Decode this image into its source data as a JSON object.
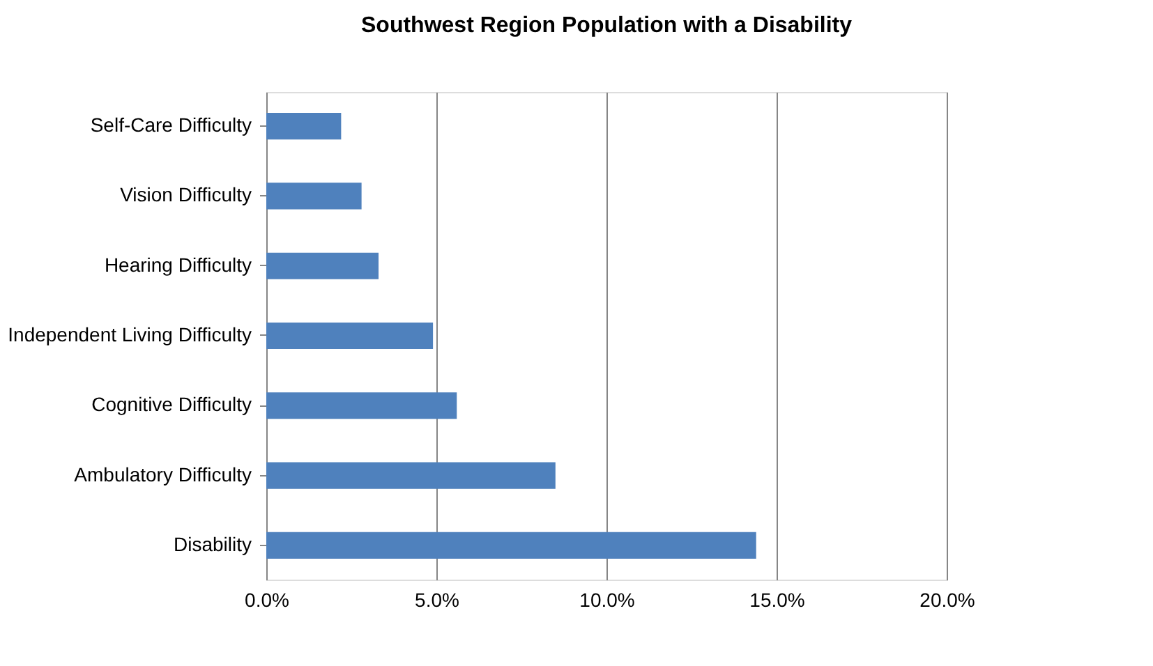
{
  "chart_data": {
    "type": "bar",
    "orientation": "horizontal",
    "title": "Southwest Region Population with a Disability",
    "categories": [
      "Self-Care Difficulty",
      "Vision Difficulty",
      "Hearing Difficulty",
      "Independent Living Difficulty",
      "Cognitive Difficulty",
      "Ambulatory Difficulty",
      "Disability"
    ],
    "values": [
      2.2,
      2.8,
      3.3,
      4.9,
      5.6,
      8.5,
      14.4
    ],
    "color": "#4f81bd",
    "xlim": [
      0,
      20
    ],
    "xticks": [
      {
        "value": 0,
        "label": "0.0%"
      },
      {
        "value": 5,
        "label": "5.0%"
      },
      {
        "value": 10,
        "label": "10.0%"
      },
      {
        "value": 15,
        "label": "15.0%"
      },
      {
        "value": 20,
        "label": "20.0%"
      }
    ],
    "grid": "x"
  }
}
